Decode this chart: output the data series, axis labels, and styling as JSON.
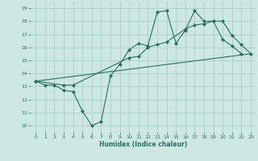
{
  "bg_color": "#cce8e0",
  "grid_color": "#aad0c8",
  "line_color": "#2a7060",
  "marker_color": "#2a7060",
  "xlabel": "Humidex (Indice chaleur)",
  "xlim": [
    -0.5,
    23.5
  ],
  "ylim": [
    9.5,
    19.5
  ],
  "yticks": [
    10,
    11,
    12,
    13,
    14,
    15,
    16,
    17,
    18,
    19
  ],
  "xticks": [
    0,
    1,
    2,
    3,
    4,
    5,
    6,
    7,
    8,
    9,
    10,
    11,
    12,
    13,
    14,
    15,
    16,
    17,
    18,
    19,
    20,
    21,
    22,
    23
  ],
  "line1_x": [
    0,
    1,
    2,
    3,
    4,
    5,
    6,
    7,
    8,
    9,
    10,
    11,
    12,
    13,
    14,
    15,
    16,
    17,
    18,
    19,
    20,
    21,
    22
  ],
  "line1_y": [
    13.4,
    13.1,
    13.1,
    12.7,
    12.6,
    11.1,
    10.0,
    10.3,
    13.8,
    14.7,
    15.8,
    16.3,
    16.1,
    18.7,
    18.8,
    16.3,
    17.3,
    18.8,
    18.0,
    18.0,
    16.6,
    16.1,
    15.5
  ],
  "line2_x": [
    0,
    3,
    4,
    10,
    11,
    12,
    13,
    14,
    16,
    17,
    18,
    19,
    20,
    21,
    22,
    23
  ],
  "line2_y": [
    13.4,
    13.1,
    13.1,
    15.2,
    15.3,
    16.0,
    16.2,
    16.4,
    17.4,
    17.7,
    17.8,
    18.0,
    18.0,
    16.9,
    16.2,
    15.5
  ],
  "line3_x": [
    0,
    23
  ],
  "line3_y": [
    13.4,
    15.5
  ]
}
